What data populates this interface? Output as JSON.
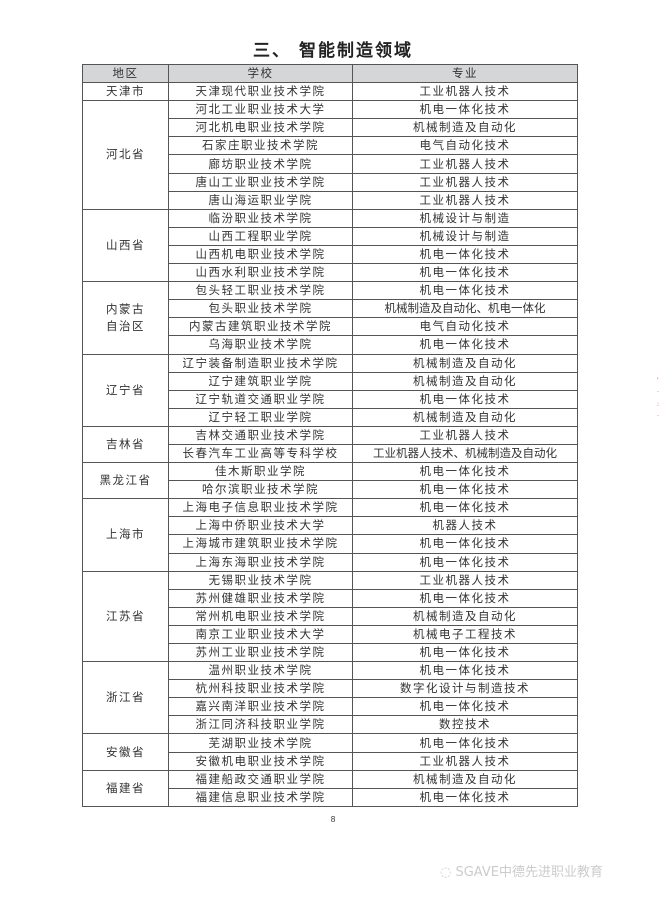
{
  "title": "三、 智能制造领域",
  "headers": [
    "地区",
    "学校",
    "专业"
  ],
  "groups": [
    {
      "region": "天津市",
      "rows": [
        [
          "天津现代职业技术学院",
          "工业机器人技术"
        ]
      ]
    },
    {
      "region": "河北省",
      "rows": [
        [
          "河北工业职业技术大学",
          "机电一体化技术"
        ],
        [
          "河北机电职业技术学院",
          "机械制造及自动化"
        ],
        [
          "石家庄职业技术学院",
          "电气自动化技术"
        ],
        [
          "廊坊职业技术学院",
          "工业机器人技术"
        ],
        [
          "唐山工业职业技术学院",
          "工业机器人技术"
        ],
        [
          "唐山海运职业学院",
          "工业机器人技术"
        ]
      ]
    },
    {
      "region": "山西省",
      "rows": [
        [
          "临汾职业技术学院",
          "机械设计与制造"
        ],
        [
          "山西工程职业学院",
          "机械设计与制造"
        ],
        [
          "山西机电职业技术学院",
          "机电一体化技术"
        ],
        [
          "山西水利职业技术学院",
          "机电一体化技术"
        ]
      ]
    },
    {
      "region": "内蒙古\n自治区",
      "rows": [
        [
          "包头轻工职业技术学院",
          "机电一体化技术"
        ],
        [
          "包头职业技术学院",
          "机械制造及自动化、机电一体化"
        ],
        [
          "内蒙古建筑职业技术学院",
          "电气自动化技术"
        ],
        [
          "乌海职业技术学院",
          "机电一体化技术"
        ]
      ]
    },
    {
      "region": "辽宁省",
      "rows": [
        [
          "辽宁装备制造职业技术学院",
          "机械制造及自动化"
        ],
        [
          "辽宁建筑职业学院",
          "机械制造及自动化"
        ],
        [
          "辽宁轨道交通职业学院",
          "机电一体化技术"
        ],
        [
          "辽宁轻工职业学院",
          "机械制造及自动化"
        ]
      ]
    },
    {
      "region": "吉林省",
      "rows": [
        [
          "吉林交通职业技术学院",
          "工业机器人技术"
        ],
        [
          "长春汽车工业高等专科学校",
          "工业机器人技术、机械制造及自动化"
        ]
      ]
    },
    {
      "region": "黑龙江省",
      "rows": [
        [
          "佳木斯职业学院",
          "机电一体化技术"
        ],
        [
          "哈尔滨职业技术学院",
          "机电一体化技术"
        ]
      ]
    },
    {
      "region": "上海市",
      "rows": [
        [
          "上海电子信息职业技术学院",
          "机电一体化技术"
        ],
        [
          "上海中侨职业技术大学",
          "机器人技术"
        ],
        [
          "上海城市建筑职业技术学院",
          "机电一体化技术"
        ],
        [
          "上海东海职业技术学院",
          "机电一体化技术"
        ]
      ]
    },
    {
      "region": "江苏省",
      "rows": [
        [
          "无锡职业技术学院",
          "工业机器人技术"
        ],
        [
          "苏州健雄职业技术学院",
          "机电一体化技术"
        ],
        [
          "常州机电职业技术学院",
          "机械制造及自动化"
        ],
        [
          "南京工业职业技术大学",
          "机械电子工程技术"
        ],
        [
          "苏州工业职业技术学院",
          "机电一体化技术"
        ]
      ]
    },
    {
      "region": "浙江省",
      "rows": [
        [
          "温州职业技术学院",
          "机电一体化技术"
        ],
        [
          "杭州科技职业技术学院",
          "数字化设计与制造技术"
        ],
        [
          "嘉兴南洋职业技术学院",
          "机电一体化技术"
        ],
        [
          "浙江同济科技职业学院",
          "数控技术"
        ]
      ]
    },
    {
      "region": "安徽省",
      "rows": [
        [
          "芜湖职业技术学院",
          "机电一体化技术"
        ],
        [
          "安徽机电职业技术学院",
          "工业机器人技术"
        ]
      ]
    },
    {
      "region": "福建省",
      "rows": [
        [
          "福建船政交通职业学院",
          "机械制造及自动化"
        ],
        [
          "福建信息职业技术学院",
          "机电一体化技术"
        ]
      ]
    }
  ],
  "page_number": "8",
  "watermark": "SGAVE中德先进职业教育",
  "watermark_icon": "wechat-icon"
}
